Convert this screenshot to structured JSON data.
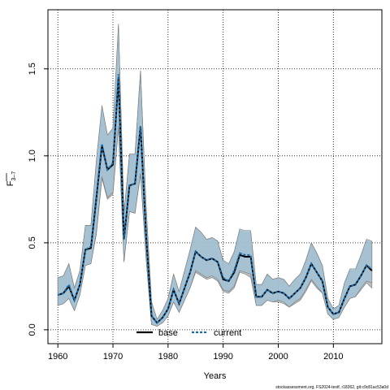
{
  "chart_data": {
    "type": "line",
    "xlabel": "Years",
    "ylabel_main": "F",
    "ylabel_sub": "3–7",
    "xlim": [
      1958.2,
      2018.8
    ],
    "ylim": [
      -0.08,
      1.84
    ],
    "x_ticks": [
      1960,
      1970,
      1980,
      1990,
      2000,
      2010
    ],
    "y_ticks": [
      0.0,
      0.5,
      1.0,
      1.5
    ],
    "y_tick_labels": [
      "0.0",
      "0.5",
      "1.0",
      "1.5"
    ],
    "grid": true,
    "legend_position": "bottom-center",
    "x": [
      1960,
      1961,
      1962,
      1963,
      1964,
      1965,
      1966,
      1967,
      1968,
      1969,
      1970,
      1971,
      1972,
      1973,
      1974,
      1975,
      1976,
      1977,
      1978,
      1979,
      1980,
      1981,
      1982,
      1983,
      1984,
      1985,
      1986,
      1987,
      1988,
      1989,
      1990,
      1991,
      1992,
      1993,
      1994,
      1995,
      1996,
      1997,
      1998,
      1999,
      2000,
      2001,
      2002,
      2003,
      2004,
      2005,
      2006,
      2007,
      2008,
      2009,
      2010,
      2011,
      2012,
      2013,
      2014,
      2015,
      2016,
      2017
    ],
    "series": [
      {
        "name": "base",
        "color": "#000000",
        "line_style": "solid",
        "values": [
          0.2,
          0.21,
          0.25,
          0.17,
          0.26,
          0.46,
          0.47,
          0.76,
          1.06,
          0.92,
          0.95,
          1.45,
          0.52,
          0.83,
          0.84,
          1.17,
          0.55,
          0.08,
          0.04,
          0.07,
          0.12,
          0.23,
          0.15,
          0.24,
          0.33,
          0.45,
          0.42,
          0.4,
          0.41,
          0.39,
          0.29,
          0.28,
          0.33,
          0.43,
          0.42,
          0.42,
          0.19,
          0.19,
          0.23,
          0.21,
          0.22,
          0.21,
          0.18,
          0.21,
          0.24,
          0.3,
          0.38,
          0.33,
          0.28,
          0.13,
          0.09,
          0.1,
          0.18,
          0.25,
          0.26,
          0.31,
          0.37,
          0.34
        ],
        "lower": [
          0.14,
          0.15,
          0.18,
          0.11,
          0.2,
          0.37,
          0.38,
          0.55,
          0.87,
          0.75,
          0.78,
          1.16,
          0.39,
          0.68,
          0.67,
          0.89,
          0.41,
          0.03,
          0.02,
          0.04,
          0.08,
          0.16,
          0.1,
          0.17,
          0.24,
          0.33,
          0.31,
          0.29,
          0.3,
          0.28,
          0.22,
          0.21,
          0.24,
          0.33,
          0.32,
          0.3,
          0.14,
          0.14,
          0.17,
          0.16,
          0.16,
          0.15,
          0.13,
          0.15,
          0.17,
          0.22,
          0.28,
          0.24,
          0.21,
          0.09,
          0.06,
          0.07,
          0.13,
          0.18,
          0.19,
          0.23,
          0.27,
          0.24
        ],
        "upper": [
          0.3,
          0.31,
          0.38,
          0.24,
          0.34,
          0.6,
          0.6,
          0.97,
          1.28,
          1.12,
          1.15,
          1.75,
          0.67,
          1.01,
          1.01,
          1.49,
          0.72,
          0.16,
          0.06,
          0.11,
          0.18,
          0.32,
          0.22,
          0.34,
          0.46,
          0.59,
          0.56,
          0.52,
          0.53,
          0.51,
          0.39,
          0.37,
          0.44,
          0.57,
          0.56,
          0.56,
          0.26,
          0.26,
          0.32,
          0.29,
          0.3,
          0.29,
          0.25,
          0.29,
          0.32,
          0.39,
          0.5,
          0.44,
          0.37,
          0.18,
          0.12,
          0.14,
          0.26,
          0.34,
          0.34,
          0.42,
          0.51,
          0.5
        ]
      },
      {
        "name": "current",
        "color": "#1a6aa8",
        "line_style": "dashed",
        "values": [
          0.2,
          0.21,
          0.26,
          0.17,
          0.26,
          0.46,
          0.48,
          0.77,
          1.07,
          0.92,
          0.96,
          1.47,
          0.52,
          0.83,
          0.84,
          1.17,
          0.55,
          0.08,
          0.04,
          0.07,
          0.12,
          0.23,
          0.15,
          0.24,
          0.33,
          0.45,
          0.42,
          0.4,
          0.41,
          0.39,
          0.3,
          0.28,
          0.34,
          0.44,
          0.43,
          0.43,
          0.19,
          0.19,
          0.23,
          0.21,
          0.22,
          0.21,
          0.18,
          0.21,
          0.24,
          0.3,
          0.38,
          0.33,
          0.28,
          0.13,
          0.09,
          0.1,
          0.18,
          0.25,
          0.26,
          0.31,
          0.37,
          0.35
        ],
        "lower": [
          0.14,
          0.15,
          0.18,
          0.11,
          0.2,
          0.37,
          0.38,
          0.56,
          0.88,
          0.76,
          0.79,
          1.17,
          0.39,
          0.68,
          0.67,
          0.9,
          0.42,
          0.03,
          0.02,
          0.04,
          0.08,
          0.16,
          0.1,
          0.17,
          0.24,
          0.34,
          0.32,
          0.3,
          0.31,
          0.29,
          0.23,
          0.22,
          0.25,
          0.34,
          0.33,
          0.32,
          0.14,
          0.14,
          0.17,
          0.16,
          0.17,
          0.16,
          0.13,
          0.16,
          0.18,
          0.23,
          0.29,
          0.25,
          0.21,
          0.09,
          0.06,
          0.07,
          0.13,
          0.18,
          0.19,
          0.24,
          0.28,
          0.27
        ],
        "upper": [
          0.3,
          0.31,
          0.38,
          0.24,
          0.34,
          0.6,
          0.6,
          0.98,
          1.29,
          1.12,
          1.16,
          1.76,
          0.67,
          1.01,
          1.01,
          1.49,
          0.72,
          0.16,
          0.06,
          0.11,
          0.18,
          0.32,
          0.22,
          0.34,
          0.46,
          0.59,
          0.56,
          0.52,
          0.53,
          0.51,
          0.4,
          0.38,
          0.45,
          0.58,
          0.57,
          0.57,
          0.26,
          0.26,
          0.32,
          0.29,
          0.3,
          0.29,
          0.25,
          0.29,
          0.32,
          0.4,
          0.5,
          0.44,
          0.37,
          0.18,
          0.12,
          0.14,
          0.27,
          0.35,
          0.35,
          0.43,
          0.52,
          0.51
        ]
      }
    ],
    "band_colors": {
      "base": "#a9a9a9",
      "current": "#9ec3d8"
    },
    "band_edge_color": "#777777",
    "footnote": "stockassessment.org, FS2024-testf, r18362, git:c9c81ac53a0d"
  }
}
